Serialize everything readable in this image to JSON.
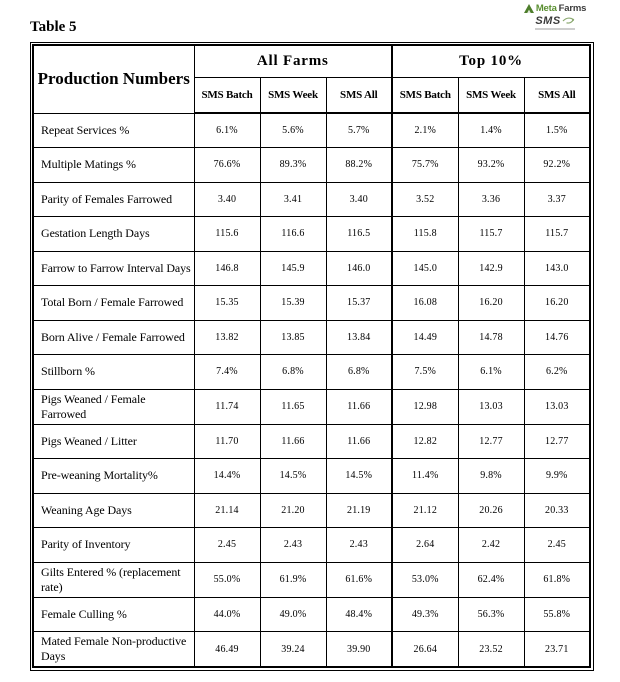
{
  "title": "Table 5",
  "logo": {
    "brand_part1": "Meta",
    "brand_part2": "Farms",
    "product": "SMS",
    "accent_green": "#5a8f31",
    "text_dark": "#3d3d3d"
  },
  "table": {
    "corner_header": "Production Numbers",
    "groups": [
      "All Farms",
      "Top 10%"
    ],
    "subheaders": [
      "SMS Batch",
      "SMS Week",
      "SMS All"
    ],
    "rows": [
      {
        "label": "Repeat Services %",
        "values": [
          "6.1%",
          "5.6%",
          "5.7%",
          "2.1%",
          "1.4%",
          "1.5%"
        ]
      },
      {
        "label": "Multiple Matings %",
        "values": [
          "76.6%",
          "89.3%",
          "88.2%",
          "75.7%",
          "93.2%",
          "92.2%"
        ]
      },
      {
        "label": "Parity of Females Farrowed",
        "values": [
          "3.40",
          "3.41",
          "3.40",
          "3.52",
          "3.36",
          "3.37"
        ]
      },
      {
        "label": "Gestation Length Days",
        "values": [
          "115.6",
          "116.6",
          "116.5",
          "115.8",
          "115.7",
          "115.7"
        ]
      },
      {
        "label": "Farrow to Farrow Interval Days",
        "values": [
          "146.8",
          "145.9",
          "146.0",
          "145.0",
          "142.9",
          "143.0"
        ]
      },
      {
        "label": "Total Born / Female Farrowed",
        "values": [
          "15.35",
          "15.39",
          "15.37",
          "16.08",
          "16.20",
          "16.20"
        ]
      },
      {
        "label": "Born Alive / Female Farrowed",
        "values": [
          "13.82",
          "13.85",
          "13.84",
          "14.49",
          "14.78",
          "14.76"
        ]
      },
      {
        "label": "Stillborn %",
        "values": [
          "7.4%",
          "6.8%",
          "6.8%",
          "7.5%",
          "6.1%",
          "6.2%"
        ]
      },
      {
        "label": "Pigs Weaned / Female Farrowed",
        "values": [
          "11.74",
          "11.65",
          "11.66",
          "12.98",
          "13.03",
          "13.03"
        ]
      },
      {
        "label": "Pigs Weaned / Litter",
        "values": [
          "11.70",
          "11.66",
          "11.66",
          "12.82",
          "12.77",
          "12.77"
        ]
      },
      {
        "label": "Pre-weaning Mortality%",
        "values": [
          "14.4%",
          "14.5%",
          "14.5%",
          "11.4%",
          "9.8%",
          "9.9%"
        ]
      },
      {
        "label": "Weaning Age Days",
        "values": [
          "21.14",
          "21.20",
          "21.19",
          "21.12",
          "20.26",
          "20.33"
        ]
      },
      {
        "label": "Parity of Inventory",
        "values": [
          "2.45",
          "2.43",
          "2.43",
          "2.64",
          "2.42",
          "2.45"
        ]
      },
      {
        "label": "Gilts Entered % (replacement rate)",
        "values": [
          "55.0%",
          "61.9%",
          "61.6%",
          "53.0%",
          "62.4%",
          "61.8%"
        ]
      },
      {
        "label": "Female Culling %",
        "values": [
          "44.0%",
          "49.0%",
          "48.4%",
          "49.3%",
          "56.3%",
          "55.8%"
        ]
      },
      {
        "label": "Mated Female Non-productive Days",
        "values": [
          "46.49",
          "39.24",
          "39.90",
          "26.64",
          "23.52",
          "23.71"
        ]
      }
    ]
  }
}
